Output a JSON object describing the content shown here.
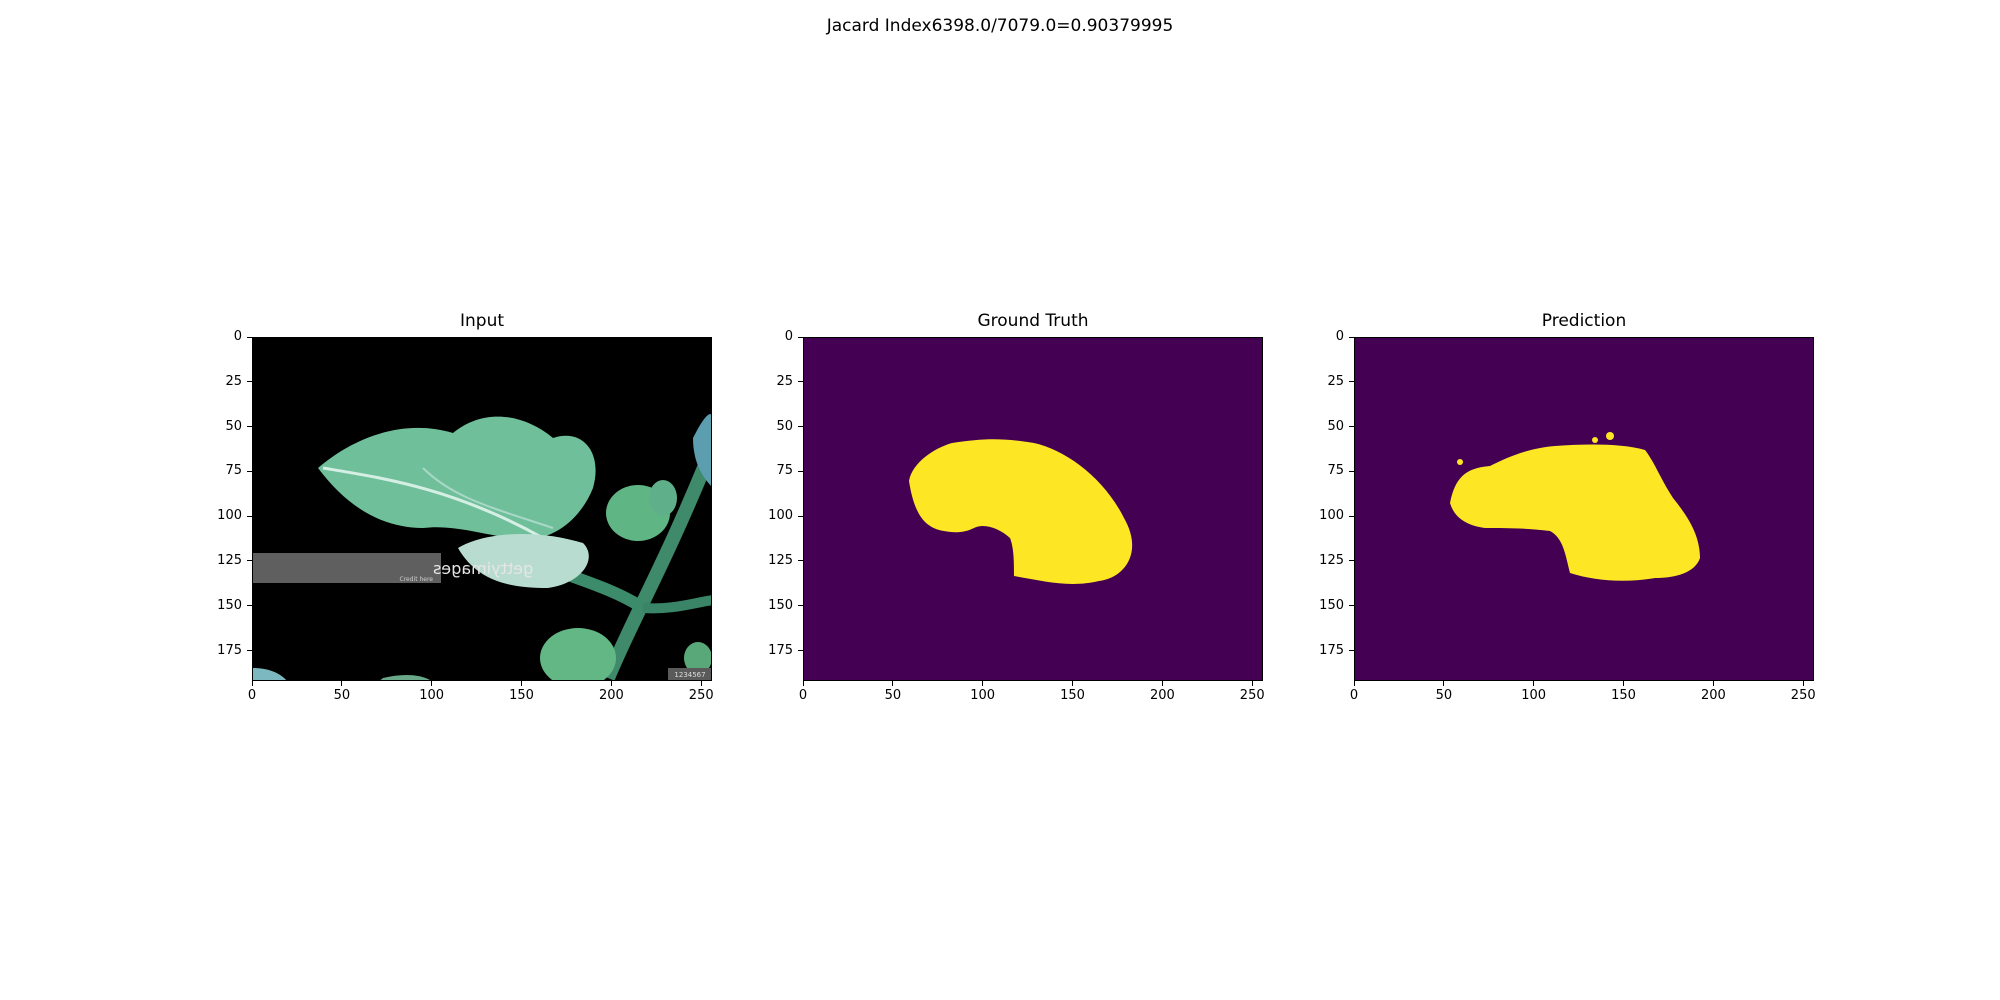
{
  "suptitle": "Jacard Index6398.0/7079.0=0.90379995",
  "panels": [
    {
      "key": "input",
      "title": "Input"
    },
    {
      "key": "ground_truth",
      "title": "Ground Truth"
    },
    {
      "key": "prediction",
      "title": "Prediction"
    }
  ],
  "axes": {
    "x_ticks": [
      "0",
      "50",
      "100",
      "150",
      "200",
      "250"
    ],
    "y_ticks": [
      "0",
      "25",
      "50",
      "75",
      "100",
      "125",
      "150",
      "175"
    ],
    "x_range": [
      0,
      256
    ],
    "y_range": [
      0,
      192
    ]
  },
  "colors": {
    "mask_background": "#440154",
    "mask_foreground": "#fde725",
    "input_background": "#000000"
  },
  "watermark": {
    "text": "gettyimages",
    "subtext": "Credit here",
    "corner_text": "1234567"
  }
}
